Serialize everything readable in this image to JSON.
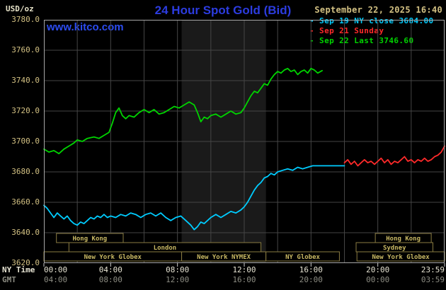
{
  "header": {
    "units": "USD/oz",
    "title": "24 Hour Spot Gold (Bid)",
    "datetime": "September 22, 2025 16:40",
    "watermark": "www.kitco.com"
  },
  "axes": {
    "ny_caption": "NY Time",
    "gmt_caption": "GMT"
  },
  "legend": [
    {
      "label": "- Sep 19 NY close 3684.00",
      "color": "#00ccff"
    },
    {
      "label": "- Sep 21 Sunday",
      "color": "#ff2a2a"
    },
    {
      "label": "- Sep 22 Last 3746.60",
      "color": "#00d400"
    }
  ],
  "chart_data": {
    "type": "line",
    "title": "24 Hour Spot Gold (Bid)",
    "ylabel": "USD/oz",
    "ylim": [
      3620,
      3780
    ],
    "ny_close": 3684.0,
    "last": 3746.6,
    "y_ticks": [
      3780,
      3760,
      3740,
      3720,
      3700,
      3680,
      3660,
      3640,
      3620
    ],
    "x_ticks": {
      "hours": [
        0,
        4,
        8,
        12,
        16,
        20,
        24
      ],
      "ny_labels": [
        "00:00",
        "04:00",
        "08:00",
        "12:00",
        "16:00",
        "20:00",
        "23:59"
      ],
      "gmt_labels": [
        "04:00",
        "08:00",
        "12:00",
        "16:00",
        "20:00",
        "00:00",
        "03:59"
      ]
    },
    "grid": {
      "color": "#454545",
      "v_hours": [
        2,
        4,
        6,
        8,
        10,
        12,
        14,
        16,
        18,
        20,
        22
      ],
      "h_prices": [
        3640,
        3660,
        3680,
        3700,
        3720,
        3740,
        3760
      ]
    },
    "nymex_band": {
      "start": 8.25,
      "end": 13.3,
      "color": "#1a1a1a"
    },
    "session_style": {
      "border": "#8a7c42",
      "text": "#c9b964"
    },
    "sessions": [
      {
        "row": 0,
        "label": "Hong Kong",
        "start": 0.75,
        "end": 4.75
      },
      {
        "row": 0,
        "label": "Hong Kong",
        "start": 19.85,
        "end": 23.2
      },
      {
        "row": 1,
        "label": "London",
        "start": 1.5,
        "end": 13.0
      },
      {
        "row": 1,
        "label": "Sydney",
        "start": 18.7,
        "end": 23.3
      },
      {
        "row": 2,
        "label": "New York Globex",
        "start": 0.0,
        "end": 8.25
      },
      {
        "row": 2,
        "label": "New York NYMEX",
        "start": 8.25,
        "end": 13.3
      },
      {
        "row": 2,
        "label": "NY Globex",
        "start": 13.3,
        "end": 17.7
      },
      {
        "row": 2,
        "label": "New York Globex",
        "start": 18.75,
        "end": 24.0
      }
    ],
    "series": [
      {
        "id": "sep19",
        "name": "Sep 19 NY close",
        "color": "#00ccff",
        "points": [
          [
            0,
            3658
          ],
          [
            0.2,
            3656
          ],
          [
            0.4,
            3653
          ],
          [
            0.6,
            3650
          ],
          [
            0.8,
            3653
          ],
          [
            1.0,
            3651
          ],
          [
            1.2,
            3649
          ],
          [
            1.4,
            3651
          ],
          [
            1.6,
            3648
          ],
          [
            1.8,
            3646
          ],
          [
            2.0,
            3645
          ],
          [
            2.2,
            3647
          ],
          [
            2.4,
            3646
          ],
          [
            2.6,
            3648
          ],
          [
            2.8,
            3650
          ],
          [
            3.0,
            3649
          ],
          [
            3.2,
            3651
          ],
          [
            3.4,
            3650
          ],
          [
            3.6,
            3652
          ],
          [
            3.8,
            3650
          ],
          [
            4.0,
            3651
          ],
          [
            4.3,
            3650
          ],
          [
            4.6,
            3652
          ],
          [
            4.9,
            3651
          ],
          [
            5.2,
            3653
          ],
          [
            5.5,
            3652
          ],
          [
            5.8,
            3650
          ],
          [
            6.1,
            3652
          ],
          [
            6.4,
            3653
          ],
          [
            6.7,
            3651
          ],
          [
            7.0,
            3653
          ],
          [
            7.3,
            3650
          ],
          [
            7.6,
            3648
          ],
          [
            7.9,
            3650
          ],
          [
            8.2,
            3651
          ],
          [
            8.5,
            3648
          ],
          [
            8.8,
            3645
          ],
          [
            9.0,
            3642
          ],
          [
            9.2,
            3644
          ],
          [
            9.4,
            3647
          ],
          [
            9.6,
            3646
          ],
          [
            9.8,
            3648
          ],
          [
            10.0,
            3650
          ],
          [
            10.3,
            3652
          ],
          [
            10.6,
            3650
          ],
          [
            10.9,
            3652
          ],
          [
            11.2,
            3654
          ],
          [
            11.5,
            3653
          ],
          [
            11.8,
            3655
          ],
          [
            12.0,
            3657
          ],
          [
            12.2,
            3660
          ],
          [
            12.4,
            3664
          ],
          [
            12.6,
            3668
          ],
          [
            12.8,
            3671
          ],
          [
            13.0,
            3673
          ],
          [
            13.2,
            3676
          ],
          [
            13.4,
            3677
          ],
          [
            13.6,
            3679
          ],
          [
            13.8,
            3678
          ],
          [
            14.0,
            3680
          ],
          [
            14.3,
            3681
          ],
          [
            14.6,
            3682
          ],
          [
            14.9,
            3681
          ],
          [
            15.2,
            3683
          ],
          [
            15.5,
            3682
          ],
          [
            15.8,
            3683
          ],
          [
            16.1,
            3684
          ],
          [
            16.5,
            3684
          ],
          [
            17.0,
            3684
          ],
          [
            18.0,
            3684
          ]
        ]
      },
      {
        "id": "sep21",
        "name": "Sep 21 Sunday",
        "color": "#ff2a2a",
        "points": [
          [
            18.0,
            3686
          ],
          [
            18.2,
            3688
          ],
          [
            18.4,
            3685
          ],
          [
            18.6,
            3687
          ],
          [
            18.8,
            3684
          ],
          [
            19.0,
            3686
          ],
          [
            19.2,
            3688
          ],
          [
            19.4,
            3686
          ],
          [
            19.6,
            3687
          ],
          [
            19.8,
            3685
          ],
          [
            20.0,
            3687
          ],
          [
            20.2,
            3689
          ],
          [
            20.4,
            3686
          ],
          [
            20.6,
            3688
          ],
          [
            20.8,
            3685
          ],
          [
            21.0,
            3687
          ],
          [
            21.2,
            3686
          ],
          [
            21.4,
            3688
          ],
          [
            21.6,
            3690
          ],
          [
            21.8,
            3687
          ],
          [
            22.0,
            3688
          ],
          [
            22.2,
            3686
          ],
          [
            22.4,
            3688
          ],
          [
            22.6,
            3687
          ],
          [
            22.8,
            3689
          ],
          [
            23.0,
            3687
          ],
          [
            23.2,
            3688
          ],
          [
            23.4,
            3690
          ],
          [
            23.6,
            3691
          ],
          [
            23.8,
            3693
          ],
          [
            24.0,
            3697
          ]
        ]
      },
      {
        "id": "sep22",
        "name": "Sep 22 Last",
        "color": "#00d400",
        "points": [
          [
            0,
            3695
          ],
          [
            0.3,
            3693
          ],
          [
            0.6,
            3694
          ],
          [
            0.9,
            3692
          ],
          [
            1.2,
            3695
          ],
          [
            1.5,
            3697
          ],
          [
            1.8,
            3699
          ],
          [
            2.0,
            3701
          ],
          [
            2.3,
            3700
          ],
          [
            2.6,
            3702
          ],
          [
            3.0,
            3703
          ],
          [
            3.3,
            3702
          ],
          [
            3.6,
            3704
          ],
          [
            3.9,
            3706
          ],
          [
            4.1,
            3712
          ],
          [
            4.3,
            3719
          ],
          [
            4.5,
            3722
          ],
          [
            4.7,
            3717
          ],
          [
            4.9,
            3715
          ],
          [
            5.1,
            3717
          ],
          [
            5.4,
            3716
          ],
          [
            5.7,
            3719
          ],
          [
            6.0,
            3721
          ],
          [
            6.3,
            3719
          ],
          [
            6.6,
            3721
          ],
          [
            6.9,
            3718
          ],
          [
            7.2,
            3719
          ],
          [
            7.5,
            3721
          ],
          [
            7.8,
            3723
          ],
          [
            8.1,
            3722
          ],
          [
            8.4,
            3724
          ],
          [
            8.7,
            3726
          ],
          [
            9.0,
            3724
          ],
          [
            9.2,
            3719
          ],
          [
            9.4,
            3713
          ],
          [
            9.6,
            3716
          ],
          [
            9.8,
            3715
          ],
          [
            10.0,
            3717
          ],
          [
            10.3,
            3718
          ],
          [
            10.6,
            3716
          ],
          [
            10.9,
            3718
          ],
          [
            11.2,
            3720
          ],
          [
            11.5,
            3718
          ],
          [
            11.8,
            3719
          ],
          [
            12.0,
            3722
          ],
          [
            12.2,
            3726
          ],
          [
            12.4,
            3730
          ],
          [
            12.6,
            3733
          ],
          [
            12.8,
            3732
          ],
          [
            13.0,
            3735
          ],
          [
            13.2,
            3738
          ],
          [
            13.4,
            3737
          ],
          [
            13.6,
            3741
          ],
          [
            13.8,
            3744
          ],
          [
            14.0,
            3746
          ],
          [
            14.2,
            3745
          ],
          [
            14.4,
            3747
          ],
          [
            14.6,
            3748
          ],
          [
            14.8,
            3746
          ],
          [
            15.0,
            3747
          ],
          [
            15.2,
            3744
          ],
          [
            15.4,
            3746
          ],
          [
            15.6,
            3747
          ],
          [
            15.8,
            3745
          ],
          [
            16.0,
            3748
          ],
          [
            16.2,
            3747
          ],
          [
            16.4,
            3745
          ],
          [
            16.67,
            3746.6
          ]
        ]
      }
    ]
  }
}
